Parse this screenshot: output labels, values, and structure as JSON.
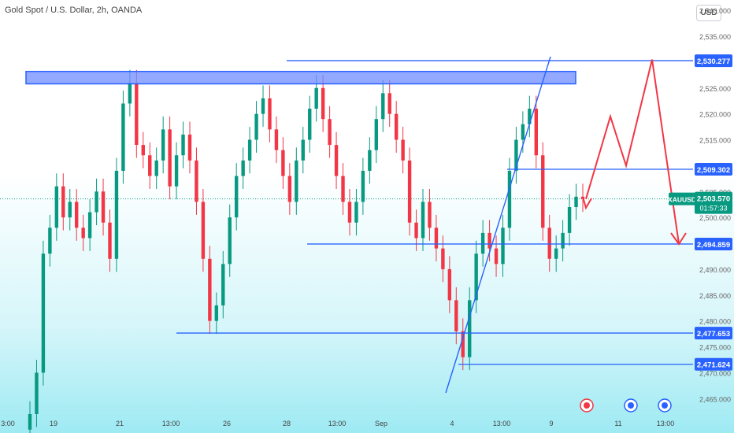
{
  "header": {
    "symbol": "Gold Spot / U.S. Dollar, 2h, OANDA",
    "currency": "USD"
  },
  "colors": {
    "up": "#089981",
    "down": "#f23645",
    "line": "#2962ff",
    "zone": "#6f8cff",
    "arrow": "#f23645",
    "last": "#089981"
  },
  "chart_data": {
    "type": "candlestick",
    "ylim": [
      2462,
      2542
    ],
    "y_ticks": [
      "2,465.000",
      "2,470.000",
      "2,475.000",
      "2,480.000",
      "2,485.000",
      "2,490.000",
      "2,495.000",
      "2,500.000",
      "2,505.000",
      "2,510.000",
      "2,515.000",
      "2,520.000",
      "2,525.000",
      "2,530.000",
      "2,535.000",
      "2,540.000"
    ],
    "x_ticks": [
      "3:00",
      "19",
      "21",
      "13:00",
      "26",
      "28",
      "13:00",
      "Sep",
      "4",
      "13:00",
      "9",
      "11",
      "13:00"
    ],
    "price_labels": [
      {
        "text": "2,530.277",
        "value": 2530.277,
        "kind": "level"
      },
      {
        "text": "2,509.302",
        "value": 2509.302,
        "kind": "level"
      },
      {
        "text": "2,494.859",
        "value": 2494.859,
        "kind": "level"
      },
      {
        "text": "2,477.653",
        "value": 2477.653,
        "kind": "level"
      },
      {
        "text": "2,471.624",
        "value": 2471.624,
        "kind": "level"
      }
    ],
    "last_price": {
      "symbol": "XAUUSD",
      "price": "2,503.570",
      "countdown": "01:57:33",
      "value": 2503.57
    },
    "candles_close": [
      2462,
      2470,
      2493,
      2498,
      2506,
      2500,
      2503,
      2498,
      2496,
      2501,
      2505,
      2499,
      2492,
      2509,
      2522,
      2526,
      2514,
      2512,
      2508,
      2511,
      2517,
      2506,
      2512,
      2516,
      2511,
      2503,
      2492,
      2480,
      2483,
      2491,
      2500,
      2508,
      2511,
      2515,
      2520,
      2523,
      2517,
      2513,
      2508,
      2503,
      2511,
      2515,
      2521,
      2525,
      2519,
      2514,
      2508,
      2503,
      2499,
      2503,
      2509,
      2513,
      2519,
      2524,
      2520,
      2515,
      2511,
      2499,
      2496,
      2503,
      2498,
      2494,
      2490,
      2484,
      2478,
      2473,
      2484,
      2493,
      2497,
      2494,
      2491,
      2498,
      2509,
      2515,
      2518,
      2521,
      2512,
      2498,
      2492,
      2494,
      2497,
      2502,
      2504,
      2503.57
    ],
    "levels": [
      2530.277,
      2509.302,
      2494.859,
      2477.653,
      2471.624
    ],
    "zone": [
      2528.2,
      2525.8
    ],
    "projection": [
      2503.57,
      2510,
      2520,
      2510,
      2530.5,
      2494.9
    ]
  }
}
